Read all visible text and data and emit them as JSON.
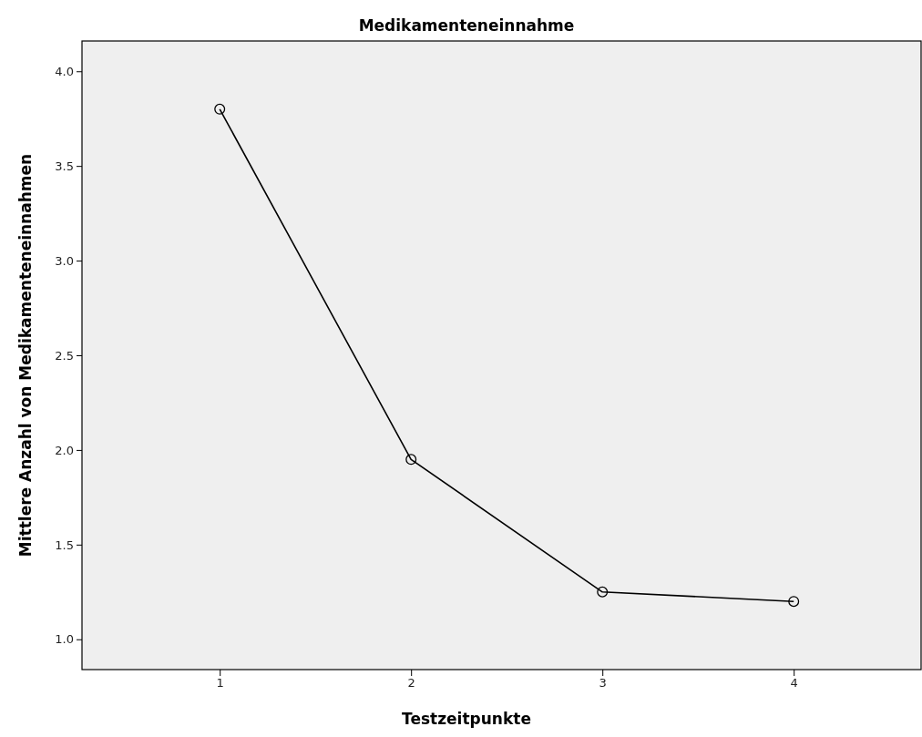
{
  "chart_data": {
    "type": "line",
    "title": "Medikamenteneinnahme",
    "xlabel": "Testzeitpunkte",
    "ylabel": "Mittlere Anzahl von Medikamenteneinnahmen",
    "categories": [
      "1",
      "2",
      "3",
      "4"
    ],
    "series": [
      {
        "color": "#000000",
        "values": [
          3.8,
          1.95,
          1.25,
          1.2
        ]
      }
    ],
    "ylim": [
      0.84,
      4.16
    ],
    "yticks": [
      {
        "value": 1,
        "label": "1.0"
      },
      {
        "value": 1.5,
        "label": "1.5"
      },
      {
        "value": 2,
        "label": "2.0"
      },
      {
        "value": 2.5,
        "label": "2.5"
      },
      {
        "value": 3,
        "label": "3.0"
      },
      {
        "value": 3.5,
        "label": "3.5"
      },
      {
        "value": 4,
        "label": "4.0"
      }
    ],
    "grid": false,
    "marker": "circle",
    "line_style": "solid"
  }
}
